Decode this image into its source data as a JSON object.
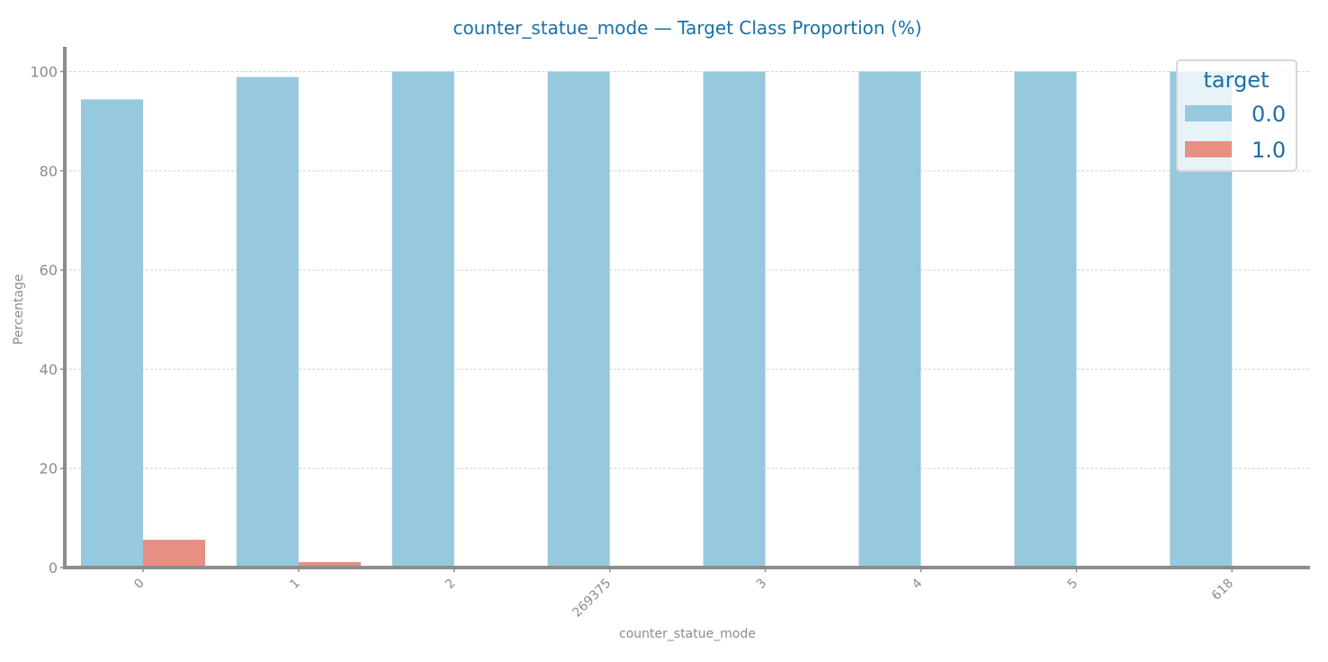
{
  "chart_data": {
    "type": "bar",
    "title": "counter_statue_mode — Target Class Proportion (%)",
    "xlabel": "counter_statue_mode",
    "ylabel": "Percentage",
    "categories": [
      "0",
      "1",
      "2",
      "269375",
      "3",
      "4",
      "5",
      "618"
    ],
    "series": [
      {
        "name": "0.0",
        "color": "#96c8de",
        "values": [
          94.4,
          98.9,
          100,
          100,
          100,
          100,
          100,
          100
        ]
      },
      {
        "name": "1.0",
        "color": "#e88f84",
        "values": [
          5.6,
          1.1,
          0,
          0,
          0,
          0,
          0,
          0
        ]
      }
    ],
    "ylim": [
      0,
      105
    ],
    "yticks": [
      0,
      20,
      40,
      60,
      80,
      100
    ],
    "grid": true,
    "legend": {
      "title": "target",
      "placement": "top-right"
    }
  }
}
